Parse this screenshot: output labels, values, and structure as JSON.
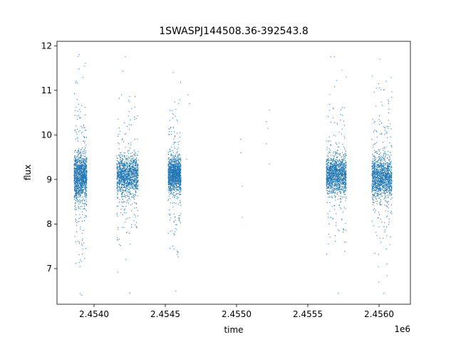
{
  "chart_data": {
    "type": "scatter",
    "title": "1SWASPJ144508.36-392543.8",
    "xlabel": "time",
    "ylabel": "flux",
    "x_offset_label": "1e6",
    "x_ticks": [
      2.454,
      2.4545,
      2.455,
      2.4555,
      2.456
    ],
    "x_tick_labels": [
      "2.4540",
      "2.4545",
      "2.4550",
      "2.4555",
      "2.4560"
    ],
    "y_ticks": [
      7,
      8,
      9,
      10,
      11,
      12
    ],
    "y_tick_labels": [
      "7",
      "8",
      "9",
      "10",
      "11",
      "12"
    ],
    "xlim": [
      2.45374,
      2.45622
    ],
    "ylim": [
      6.2,
      12.1
    ],
    "grid": false,
    "legend": "none",
    "color": "#1f77b4",
    "series": [
      {
        "clusters": [
          {
            "x_range": [
              2.45386,
              2.45395
            ],
            "median": 9.05,
            "spread": 0.55,
            "y_min": 6.4,
            "y_max": 11.8
          },
          {
            "x_range": [
              2.45416,
              2.45431
            ],
            "median": 9.1,
            "spread": 0.45,
            "y_min": 6.45,
            "y_max": 11.75
          },
          {
            "x_range": [
              2.45452,
              2.45461
            ],
            "median": 9.1,
            "spread": 0.4,
            "y_min": 6.5,
            "y_max": 11.4
          },
          {
            "x_range": [
              2.45563,
              2.45577
            ],
            "median": 9.1,
            "spread": 0.45,
            "y_min": 6.45,
            "y_max": 11.75
          },
          {
            "x_range": [
              2.45595,
              2.45609
            ],
            "median": 9.05,
            "spread": 0.5,
            "y_min": 6.45,
            "y_max": 11.7
          }
        ],
        "sparse_points": [
          {
            "x": 2.45466,
            "y": 10.9
          },
          {
            "x": 2.45467,
            "y": 10.7
          },
          {
            "x": 2.45465,
            "y": 9.45
          },
          {
            "x": 2.45503,
            "y": 9.9
          },
          {
            "x": 2.45503,
            "y": 9.6
          },
          {
            "x": 2.45504,
            "y": 8.85
          },
          {
            "x": 2.45504,
            "y": 8.15
          },
          {
            "x": 2.45521,
            "y": 10.3
          },
          {
            "x": 2.45521,
            "y": 9.8
          },
          {
            "x": 2.45522,
            "y": 10.15
          },
          {
            "x": 2.45523,
            "y": 10.55
          },
          {
            "x": 2.45523,
            "y": 9.35
          },
          {
            "x": 2.45566,
            "y": 11.75
          },
          {
            "x": 2.45574,
            "y": 11.45
          },
          {
            "x": 2.45577,
            "y": 11.3
          }
        ]
      }
    ]
  }
}
